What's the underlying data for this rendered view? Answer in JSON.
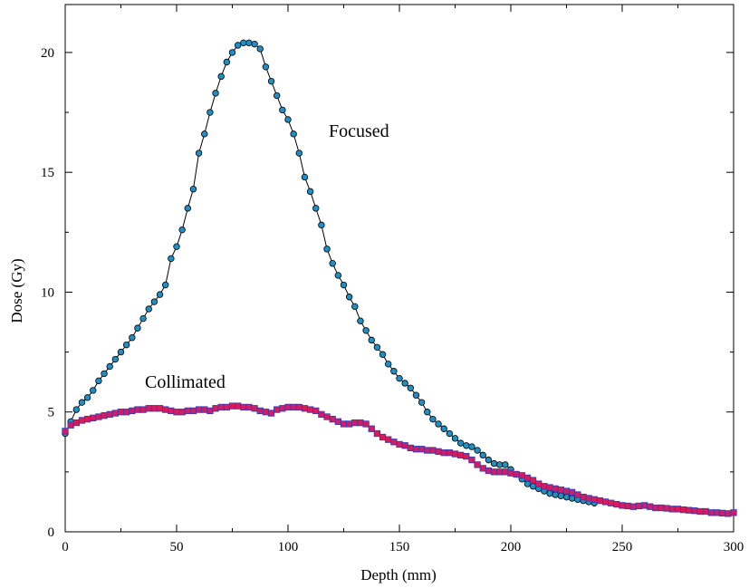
{
  "chart_data": {
    "type": "line",
    "xlabel": "Depth (mm)",
    "ylabel": "Dose (Gy)",
    "xlim": [
      0,
      300
    ],
    "ylim": [
      0,
      22
    ],
    "x_ticks": [
      0,
      50,
      100,
      150,
      200,
      250,
      300
    ],
    "y_ticks": [
      0,
      5,
      10,
      15,
      20
    ],
    "x_tick_labels": [
      "0",
      "50",
      "100",
      "150",
      "200",
      "250",
      "300"
    ],
    "y_tick_labels": [
      "0",
      "5",
      "10",
      "15",
      "20"
    ],
    "grid": false,
    "annotations": [
      {
        "text": "Focused",
        "series": "Focused"
      },
      {
        "text": "Collimated",
        "series": "Collimated"
      }
    ],
    "series": [
      {
        "name": "Focused",
        "marker": "circle",
        "marker_color": "#1E90C8",
        "x": [
          0,
          2.5,
          5,
          7.5,
          10,
          12.5,
          15,
          17.5,
          20,
          22.5,
          25,
          27.5,
          30,
          32.5,
          35,
          37.5,
          40,
          42.5,
          45,
          47.5,
          50,
          52.5,
          55,
          57.5,
          60,
          62.5,
          65,
          67.5,
          70,
          72.5,
          75,
          77.5,
          80,
          82.5,
          85,
          87.5,
          90,
          92.5,
          95,
          97.5,
          100,
          102.5,
          105,
          107.5,
          110,
          112.5,
          115,
          117.5,
          120,
          122.5,
          125,
          127.5,
          130,
          132.5,
          135,
          137.5,
          140,
          142.5,
          145,
          147.5,
          150,
          152.5,
          155,
          157.5,
          160,
          162.5,
          165,
          167.5,
          170,
          172.5,
          175,
          177.5,
          180,
          182.5,
          185,
          187.5,
          190,
          192.5,
          195,
          197.5,
          200,
          202.5,
          205,
          207.5,
          210,
          212.5,
          215,
          217.5,
          220,
          222.5,
          225,
          227.5,
          230,
          232.5,
          235,
          237.5
        ],
        "y": [
          4.1,
          4.6,
          5.1,
          5.4,
          5.6,
          5.9,
          6.3,
          6.6,
          6.9,
          7.2,
          7.5,
          7.8,
          8.1,
          8.5,
          8.9,
          9.3,
          9.6,
          9.9,
          10.3,
          11.4,
          11.9,
          12.6,
          13.5,
          14.3,
          15.8,
          16.6,
          17.5,
          18.3,
          19.0,
          19.6,
          20.0,
          20.3,
          20.4,
          20.4,
          20.35,
          20.15,
          19.4,
          18.8,
          18.2,
          17.6,
          17.2,
          16.6,
          15.8,
          14.8,
          14.2,
          13.5,
          12.8,
          11.8,
          11.2,
          10.7,
          10.3,
          9.8,
          9.4,
          8.8,
          8.4,
          8.0,
          7.7,
          7.4,
          7.0,
          6.7,
          6.4,
          6.2,
          6.0,
          5.7,
          5.4,
          5.0,
          4.7,
          4.5,
          4.3,
          4.1,
          3.9,
          3.7,
          3.6,
          3.55,
          3.4,
          3.2,
          3.0,
          2.85,
          2.8,
          2.8,
          2.6,
          2.4,
          2.2,
          2.0,
          1.9,
          1.8,
          1.7,
          1.6,
          1.55,
          1.5,
          1.45,
          1.4,
          1.35,
          1.3,
          1.25,
          1.2
        ]
      },
      {
        "name": "Collimated",
        "marker": "square",
        "marker_color": "#D81B60",
        "x": [
          0,
          2.5,
          5,
          7.5,
          10,
          12.5,
          15,
          17.5,
          20,
          22.5,
          25,
          27.5,
          30,
          32.5,
          35,
          37.5,
          40,
          42.5,
          45,
          47.5,
          50,
          52.5,
          55,
          57.5,
          60,
          62.5,
          65,
          67.5,
          70,
          72.5,
          75,
          77.5,
          80,
          82.5,
          85,
          87.5,
          90,
          92.5,
          95,
          97.5,
          100,
          102.5,
          105,
          107.5,
          110,
          112.5,
          115,
          117.5,
          120,
          122.5,
          125,
          127.5,
          130,
          132.5,
          135,
          137.5,
          140,
          142.5,
          145,
          147.5,
          150,
          152.5,
          155,
          157.5,
          160,
          162.5,
          165,
          167.5,
          170,
          172.5,
          175,
          177.5,
          180,
          182.5,
          185,
          187.5,
          190,
          192.5,
          195,
          197.5,
          200,
          202.5,
          205,
          207.5,
          210,
          212.5,
          215,
          217.5,
          220,
          222.5,
          225,
          227.5,
          230,
          232.5,
          235,
          237.5,
          240,
          242.5,
          245,
          247.5,
          250,
          252.5,
          255,
          257.5,
          260,
          262.5,
          265,
          267.5,
          270,
          272.5,
          275,
          277.5,
          280,
          282.5,
          285,
          287.5,
          290,
          292.5,
          295,
          297.5,
          300
        ],
        "y": [
          4.2,
          4.45,
          4.55,
          4.65,
          4.7,
          4.75,
          4.8,
          4.85,
          4.9,
          4.95,
          5.0,
          5.0,
          5.05,
          5.1,
          5.1,
          5.15,
          5.15,
          5.15,
          5.1,
          5.05,
          5.0,
          5.0,
          5.05,
          5.05,
          5.1,
          5.1,
          5.05,
          5.15,
          5.2,
          5.2,
          5.25,
          5.25,
          5.2,
          5.2,
          5.15,
          5.05,
          5.0,
          4.95,
          5.1,
          5.15,
          5.2,
          5.2,
          5.2,
          5.15,
          5.1,
          5.05,
          4.9,
          4.8,
          4.7,
          4.6,
          4.5,
          4.5,
          4.55,
          4.55,
          4.5,
          4.3,
          4.1,
          3.95,
          3.85,
          3.75,
          3.65,
          3.6,
          3.5,
          3.45,
          3.45,
          3.4,
          3.4,
          3.35,
          3.3,
          3.3,
          3.25,
          3.2,
          3.15,
          3.0,
          2.8,
          2.65,
          2.55,
          2.5,
          2.5,
          2.5,
          2.45,
          2.4,
          2.35,
          2.25,
          2.15,
          2.0,
          1.9,
          1.85,
          1.8,
          1.75,
          1.7,
          1.65,
          1.55,
          1.45,
          1.4,
          1.35,
          1.3,
          1.25,
          1.2,
          1.15,
          1.1,
          1.08,
          1.05,
          1.08,
          1.1,
          1.05,
          1.0,
          1.0,
          0.98,
          0.95,
          0.95,
          0.92,
          0.9,
          0.88,
          0.85,
          0.85,
          0.8,
          0.8,
          0.78,
          0.76,
          0.8
        ]
      }
    ]
  }
}
